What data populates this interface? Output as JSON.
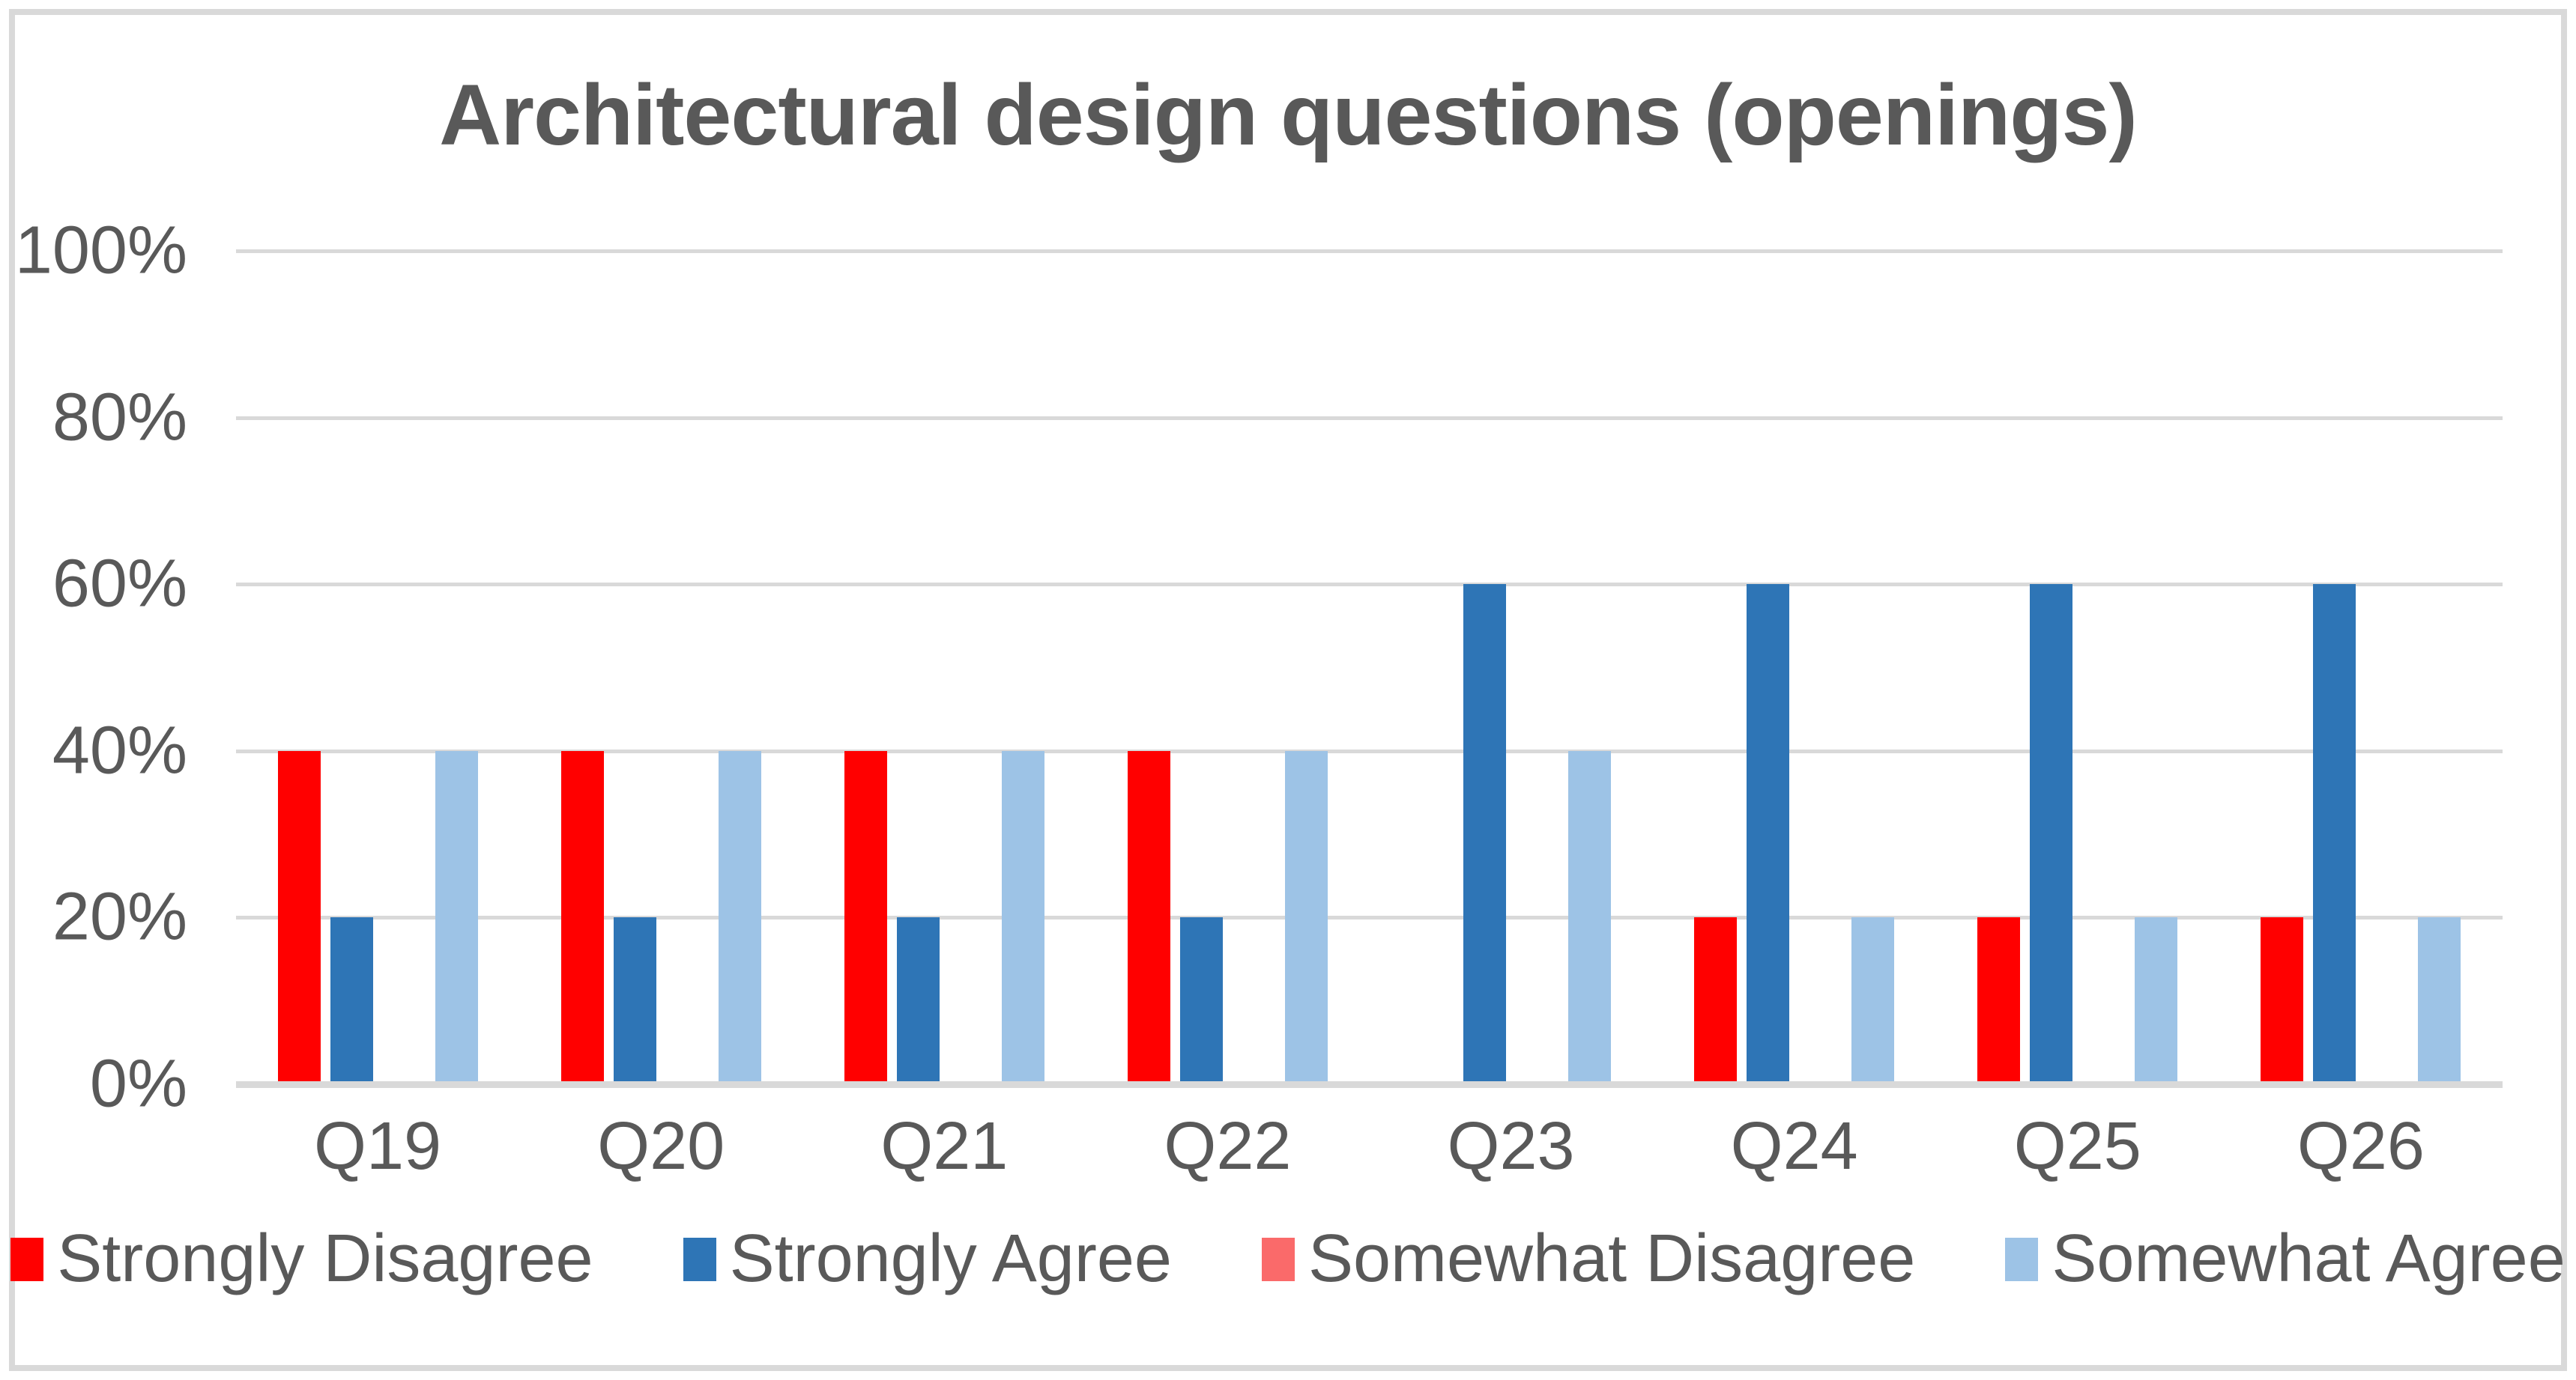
{
  "chart_data": {
    "type": "bar",
    "title": "Architectural design questions (openings)",
    "categories": [
      "Q19",
      "Q20",
      "Q21",
      "Q22",
      "Q23",
      "Q24",
      "Q25",
      "Q26"
    ],
    "series": [
      {
        "name": "Strongly Disagree",
        "color": "#FF0000",
        "values": [
          40,
          40,
          40,
          40,
          0,
          20,
          20,
          20
        ]
      },
      {
        "name": "Strongly Agree",
        "color": "#2E75B6",
        "values": [
          20,
          20,
          20,
          20,
          60,
          60,
          60,
          60
        ]
      },
      {
        "name": "Somewhat Disagree",
        "color": "#FA6A6A",
        "values": [
          0,
          0,
          0,
          0,
          0,
          0,
          0,
          0
        ]
      },
      {
        "name": "Somewhat Agree",
        "color": "#9DC3E6",
        "values": [
          40,
          40,
          40,
          40,
          40,
          20,
          20,
          20
        ]
      }
    ],
    "y_ticks": [
      "0%",
      "20%",
      "40%",
      "60%",
      "80%",
      "100%"
    ],
    "ylim": [
      0,
      100
    ],
    "grid": true,
    "legend_position": "bottom",
    "xlabel": "",
    "ylabel": ""
  },
  "styles": {
    "text_color": "#595959",
    "grid_color": "#D9D9D9",
    "frame_color": "#D9D9D9",
    "background": "#FFFFFF"
  }
}
